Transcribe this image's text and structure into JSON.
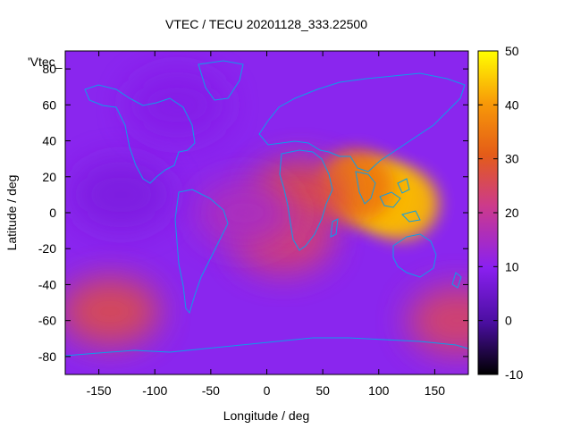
{
  "chart_data": {
    "type": "heatmap",
    "title": "VTEC / TECU 20201128_333.22500",
    "xlabel": "Longitude / deg",
    "ylabel": "Latitude / deg",
    "legend_label": "'Vtec_",
    "xlim": [
      -180,
      180
    ],
    "ylim": [
      -90,
      90
    ],
    "x_ticks": [
      -150,
      -100,
      -50,
      0,
      50,
      100,
      150
    ],
    "y_ticks": [
      -80,
      -60,
      -40,
      -20,
      0,
      20,
      40,
      60,
      80
    ],
    "colorbar": {
      "range": [
        -10,
        50
      ],
      "ticks": [
        -10,
        0,
        10,
        20,
        30,
        40,
        50
      ],
      "palette": [
        "#000000",
        "#4a0ea0",
        "#8a20f0",
        "#cc3a8c",
        "#e45c18",
        "#f89a08",
        "#ffff00"
      ]
    },
    "grid": false,
    "map_overlay": "coastlines",
    "coastline_color": "#0d9ee8",
    "features": [
      {
        "lon": 100,
        "lat": 10,
        "value": 45
      },
      {
        "lon": 120,
        "lat": 5,
        "value": 43
      },
      {
        "lon": 80,
        "lat": 15,
        "value": 35
      },
      {
        "lon": 30,
        "lat": 10,
        "value": 26
      },
      {
        "lon": 15,
        "lat": -15,
        "value": 22
      },
      {
        "lon": -140,
        "lat": -55,
        "value": 25
      },
      {
        "lon": -20,
        "lat": 0,
        "value": 15
      },
      {
        "lon": -130,
        "lat": 10,
        "value": 8
      },
      {
        "lon": -80,
        "lat": 60,
        "value": 9
      },
      {
        "lon": 170,
        "lat": -60,
        "value": 23
      }
    ]
  }
}
